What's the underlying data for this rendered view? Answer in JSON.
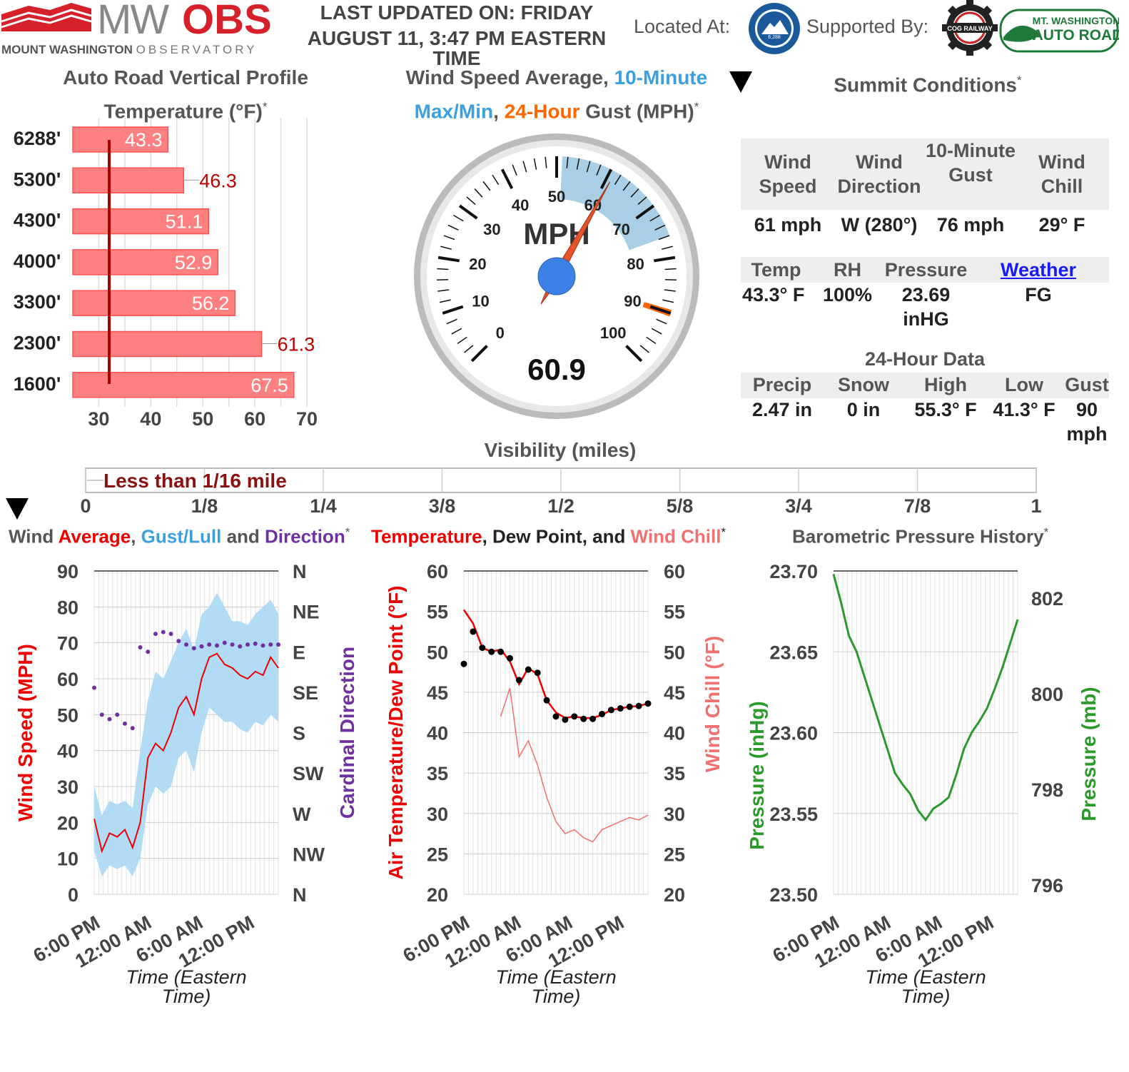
{
  "header": {
    "logo_mw": "MW",
    "logo_obs": "OBS",
    "logo_sub_bold": "MOUNT WASHINGTON",
    "logo_sub_light": "OBSERVATORY",
    "updated_l1": "LAST UPDATED ON: FRIDAY",
    "updated_l2": "AUGUST 11, 3:47 PM EASTERN",
    "updated_l3": "TIME",
    "located_label": "Located At:",
    "supported_label": "Supported By:",
    "badge_state_park": "MT. WASHINGTON STATE PARK",
    "badge_state_park_elev": "6,288",
    "badge_railway": "COG RAILWAY",
    "badge_autoroad_l1": "MT. WASHINGTON",
    "badge_autoroad_l2": "AUTO ROAD"
  },
  "profile": {
    "title_l1": "Auto Road Vertical Profile",
    "title_l2": "Temperature (°F)",
    "star": "*",
    "elevations": [
      "6288'",
      "5300'",
      "4300'",
      "4000'",
      "3300'",
      "2300'",
      "1600'"
    ],
    "values": [
      43.3,
      46.3,
      51.1,
      52.9,
      56.2,
      61.3,
      67.5
    ],
    "labels": [
      "43.3",
      "46.3",
      "51.1",
      "52.9",
      "56.2",
      "61.3",
      "67.5"
    ],
    "x_ticks": [
      "30",
      "40",
      "50",
      "60",
      "70"
    ],
    "x_range": [
      25,
      70
    ],
    "freeze_line": 32,
    "bar_color": "#ff8080"
  },
  "gauge": {
    "title_a": "Wind Speed Average, ",
    "title_b": "10-Minute",
    "title_c": "Max/Min",
    "title_d": ", ",
    "title_e": "24-Hour",
    "title_f": " Gust (MPH)",
    "star": "*",
    "unit": "MPH",
    "value": 60.9,
    "value_label": "60.9",
    "max_10min": 76,
    "min_10min": 51,
    "gust_24h": 90,
    "range": [
      0,
      100
    ],
    "tick_labels": [
      "0",
      "10",
      "20",
      "30",
      "40",
      "50",
      "60",
      "70",
      "80",
      "90",
      "100"
    ],
    "arc_color": "#a8cfe6",
    "needle_color": "#e8522a",
    "gust_color": "#ff6600"
  },
  "summit": {
    "title": "Summit Conditions",
    "star": "*",
    "row1_heads": [
      "Wind Speed",
      "Wind Direction",
      "10-Minute Gust",
      "Wind Chill"
    ],
    "row1_vals": [
      "61 mph",
      "W (280°)",
      "76 mph",
      "29° F"
    ],
    "row2_heads": [
      "Temp",
      "RH",
      "Pressure"
    ],
    "row2_link": "Weather",
    "row2_vals": [
      "43.3° F",
      "100%",
      "23.69 inHG",
      "FG"
    ],
    "data24_title": "24-Hour Data",
    "row3_heads": [
      "Precip",
      "Snow",
      "High",
      "Low",
      "Gust"
    ],
    "row3_vals": [
      "2.47 in",
      "0 in",
      "55.3° F",
      "41.3° F",
      "90 mph"
    ]
  },
  "visibility": {
    "title": "Visibility (miles)",
    "label": "Less than 1/16 mile",
    "ticks": [
      "0",
      "1/8",
      "1/4",
      "3/8",
      "1/2",
      "5/8",
      "3/4",
      "7/8",
      "1"
    ],
    "value": 0.0625
  },
  "charts_titles": {
    "wind_a": "Wind ",
    "wind_b": "Average",
    "wind_c": ", ",
    "wind_d": "Gust/Lull",
    "wind_e": " and ",
    "wind_f": "Direction",
    "temp_a": "Temperature",
    "temp_b": ", ",
    "temp_c": "Dew Point",
    "temp_d": ", and ",
    "temp_e": "Wind Chill",
    "baro": "Barometric Pressure History",
    "star": "*"
  },
  "chart_data": [
    {
      "type": "line",
      "name_key": "wind",
      "x_ticks": [
        "6:00 PM",
        "12:00 AM",
        "6:00 AM",
        "12:00 PM"
      ],
      "xlabel_l1": "Time (Eastern",
      "xlabel_l2": "Time)",
      "ylabel": "Wind Speed (MPH)",
      "ylabel_right": "Cardinal Direction",
      "y_ticks": [
        "90",
        "80",
        "70",
        "60",
        "50",
        "40",
        "30",
        "20",
        "10",
        "0"
      ],
      "y_right_ticks": [
        "N",
        "NE",
        "E",
        "SE",
        "S",
        "SW",
        "W",
        "NW",
        "N"
      ],
      "ylim": [
        0,
        90
      ],
      "x": [
        0,
        1,
        2,
        3,
        4,
        5,
        6,
        7,
        8,
        9,
        10,
        11,
        12,
        13,
        14,
        15,
        16,
        17,
        18,
        19,
        20,
        21,
        22,
        23,
        24
      ],
      "series": [
        {
          "values": [
            21,
            12,
            17,
            16,
            18,
            13,
            20,
            38,
            42,
            40,
            45,
            52,
            55,
            50,
            60,
            66,
            67,
            64,
            63,
            61,
            60,
            62,
            61,
            66,
            63
          ]
        },
        {
          "values": [
            30,
            22,
            26,
            25,
            26,
            24,
            40,
            54,
            62,
            60,
            65,
            70,
            74,
            68,
            78,
            80,
            84,
            80,
            76,
            76,
            75,
            78,
            80,
            82,
            78
          ]
        },
        {
          "values": [
            12,
            5,
            8,
            7,
            8,
            5,
            10,
            25,
            30,
            28,
            30,
            38,
            40,
            34,
            45,
            52,
            50,
            48,
            48,
            46,
            45,
            48,
            47,
            50,
            48
          ]
        },
        {
          "values": [
            230,
            200,
            195,
            200,
            190,
            185,
            275,
            270,
            290,
            292,
            290,
            282,
            278,
            274,
            276,
            278,
            277,
            280,
            278,
            276,
            278,
            279,
            277,
            278,
            278
          ]
        }
      ]
    },
    {
      "type": "line",
      "name_key": "temp",
      "x_ticks": [
        "6:00 PM",
        "12:00 AM",
        "6:00 AM",
        "12:00 PM"
      ],
      "xlabel_l1": "Time (Eastern",
      "xlabel_l2": "Time)",
      "ylabel": "Air Temperature/Dew Point (°F)",
      "ylabel_right": "Wind Chill (°F)",
      "y_ticks": [
        "60",
        "55",
        "50",
        "45",
        "40",
        "35",
        "30",
        "25",
        "20"
      ],
      "ylim": [
        20,
        60
      ],
      "x": [
        0,
        1,
        2,
        3,
        4,
        5,
        6,
        7,
        8,
        9,
        10,
        11,
        12,
        13,
        14,
        15,
        16,
        17,
        18,
        19,
        20
      ],
      "series": [
        {
          "values": [
            55.2,
            53.5,
            50.5,
            50.0,
            50.3,
            48.8,
            46.0,
            48.0,
            47.2,
            44.0,
            42.5,
            41.8,
            42.0,
            41.8,
            41.8,
            42.2,
            42.8,
            43.0,
            43.2,
            43.3,
            43.6
          ]
        },
        {
          "values": [
            48.5,
            52.5,
            50.5,
            50.0,
            50.0,
            49.2,
            46.5,
            47.8,
            47.4,
            44.0,
            42.0,
            41.6,
            42.0,
            41.7,
            41.7,
            42.3,
            42.8,
            43.0,
            43.2,
            43.3,
            43.6
          ]
        },
        {
          "values": [
            null,
            null,
            46.0,
            null,
            42.0,
            45.5,
            37.0,
            39.0,
            36.0,
            32.0,
            29.0,
            27.5,
            28.0,
            27.0,
            26.5,
            28.0,
            28.5,
            29.0,
            29.5,
            29.2,
            29.8
          ]
        }
      ]
    },
    {
      "type": "line",
      "name_key": "baro",
      "x_ticks": [
        "6:00 PM",
        "12:00 AM",
        "6:00 AM",
        "12:00 PM"
      ],
      "xlabel_l1": "Time (Eastern",
      "xlabel_l2": "Time)",
      "ylabel": "Pressure (inHg)",
      "ylabel_right": "Pressure (mb)",
      "y_ticks": [
        "23.70",
        "23.65",
        "23.60",
        "23.55",
        "23.50"
      ],
      "y_right_ticks": [
        "802",
        "800",
        "798",
        "796"
      ],
      "ylim": [
        23.5,
        23.7
      ],
      "x": [
        0,
        1,
        2,
        3,
        4,
        5,
        6,
        7,
        8,
        9,
        10,
        11,
        12,
        13,
        14,
        15,
        16,
        17,
        18,
        19,
        20,
        21,
        22,
        23,
        24
      ],
      "series": [
        {
          "values": [
            23.698,
            23.68,
            23.66,
            23.65,
            23.635,
            23.62,
            23.605,
            23.59,
            23.575,
            23.568,
            23.562,
            23.552,
            23.546,
            23.553,
            23.556,
            23.56,
            23.574,
            23.59,
            23.6,
            23.607,
            23.615,
            23.627,
            23.64,
            23.655,
            23.67
          ]
        }
      ]
    }
  ]
}
